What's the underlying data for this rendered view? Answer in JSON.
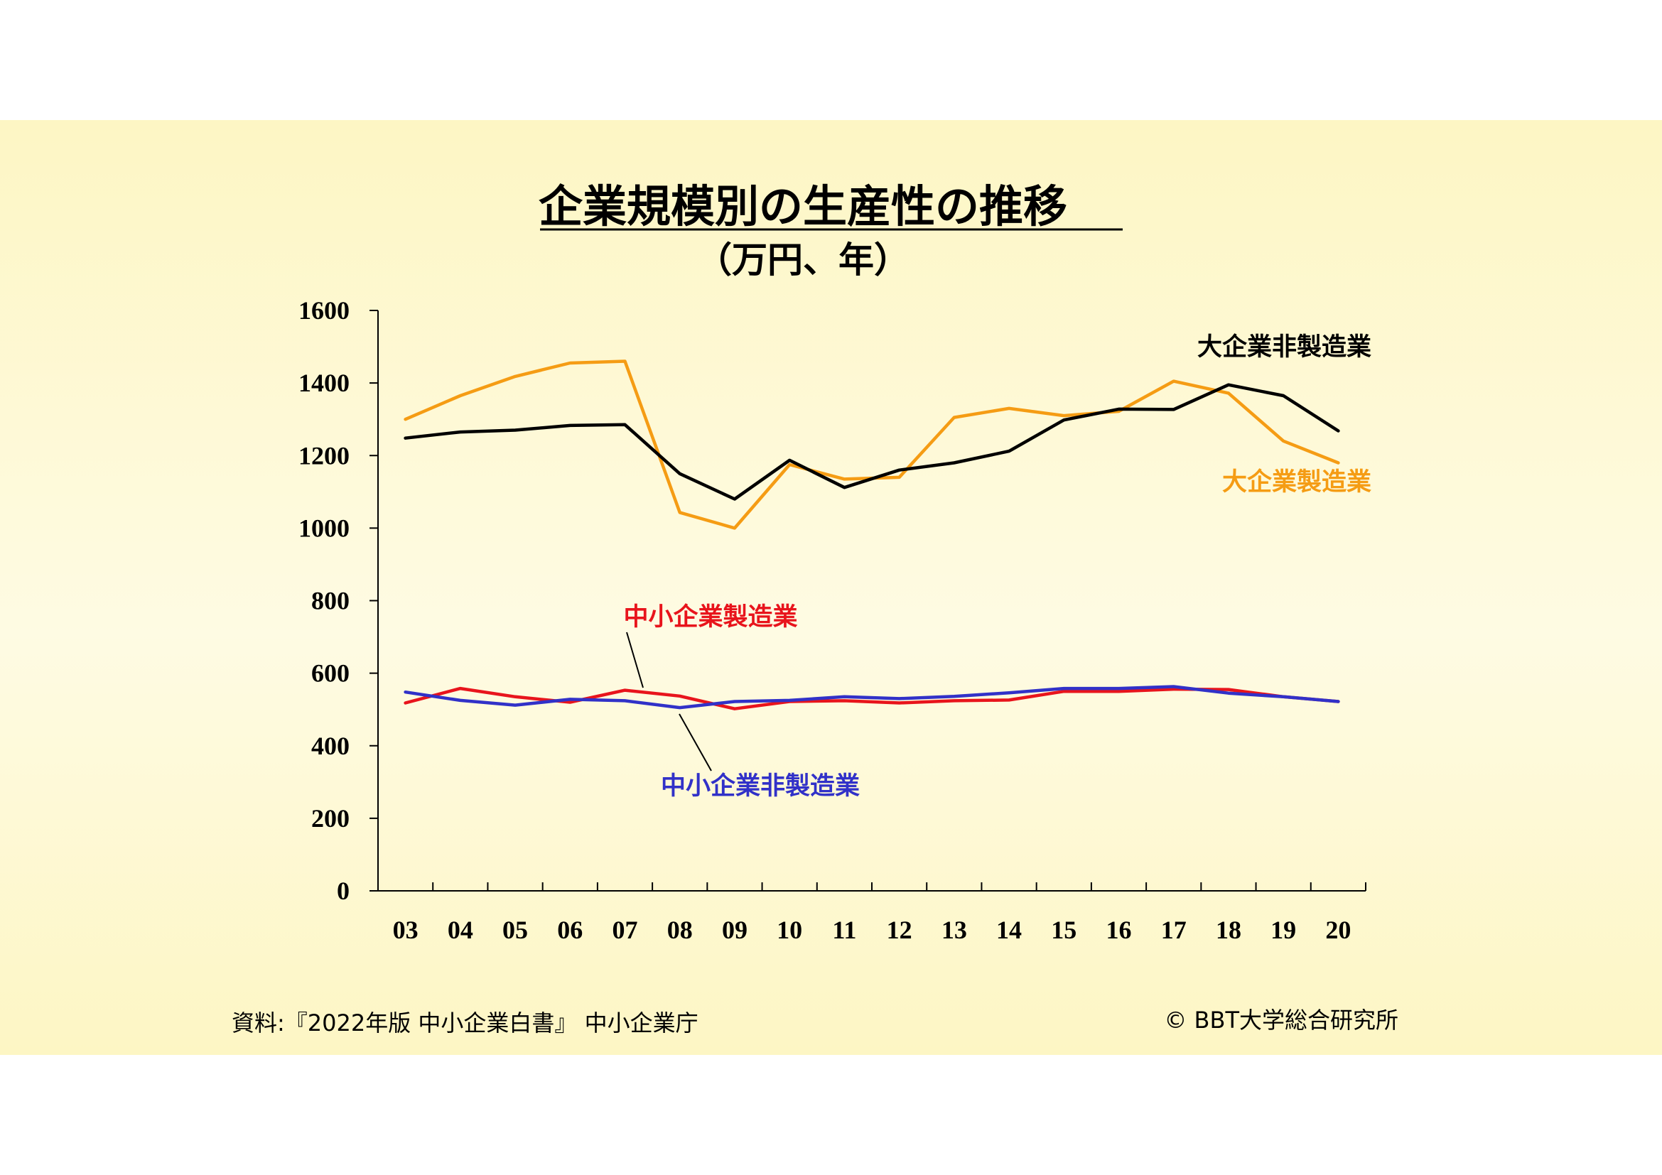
{
  "colors": {
    "panel_background": "#fdf6c4",
    "large_nonmanufacturing": "#000000",
    "large_manufacturing": "#f59c14",
    "sme_manufacturing": "#e8141c",
    "sme_nonmanufacturing": "#3131c8"
  },
  "chart_data": {
    "type": "line",
    "title": "企業規模別の生産性の推移",
    "subtitle": "（万円、年）",
    "xlabel": "",
    "ylabel": "",
    "categories": [
      "03",
      "04",
      "05",
      "06",
      "07",
      "08",
      "09",
      "10",
      "11",
      "12",
      "13",
      "14",
      "15",
      "16",
      "17",
      "18",
      "19",
      "20"
    ],
    "ylim": [
      0,
      1600
    ],
    "yticks": [
      "0",
      "200",
      "400",
      "600",
      "800",
      "1000",
      "1200",
      "1400",
      "1600"
    ],
    "grid": false,
    "series": [
      {
        "name": "大企業非製造業",
        "color": "#000000",
        "values": [
          1248,
          1265,
          1270,
          1283,
          1285,
          1150,
          1080,
          1187,
          1112,
          1160,
          1180,
          1212,
          1298,
          1328,
          1327,
          1395,
          1365,
          1268
        ]
      },
      {
        "name": "大企業製造業",
        "color": "#f59c14",
        "values": [
          1300,
          1365,
          1418,
          1455,
          1460,
          1043,
          1000,
          1175,
          1135,
          1140,
          1305,
          1330,
          1310,
          1322,
          1405,
          1372,
          1240,
          1180
        ]
      },
      {
        "name": "中小企業製造業",
        "color": "#e8141c",
        "values": [
          518,
          558,
          535,
          520,
          553,
          537,
          502,
          522,
          524,
          518,
          524,
          526,
          550,
          550,
          556,
          555,
          535,
          522
        ]
      },
      {
        "name": "中小企業非製造業",
        "color": "#3131c8",
        "values": [
          548,
          525,
          512,
          528,
          524,
          505,
          522,
          525,
          535,
          530,
          536,
          546,
          558,
          558,
          563,
          545,
          535,
          522
        ]
      }
    ]
  },
  "footer": {
    "source": "資料:『2022年版 中小企業白書』 中小企業庁",
    "copyright": "© BBT大学総合研究所"
  }
}
